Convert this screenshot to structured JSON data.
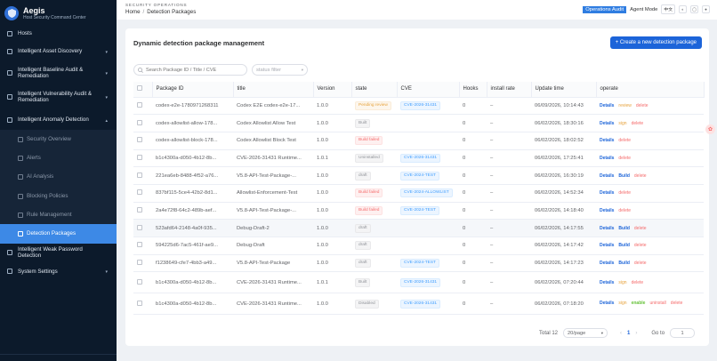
{
  "app": {
    "title": "Aegis",
    "subtitle": "Host Security Command Center"
  },
  "sidebar": {
    "items": [
      {
        "label": "Hosts",
        "icon": "host-icon"
      },
      {
        "label": "Intelligent Asset Discovery",
        "icon": "asset-icon"
      },
      {
        "label": "Intelligent Baseline Audit & Remediation",
        "icon": "baseline-icon"
      },
      {
        "label": "Intelligent Vulnerability Audit & Remediation",
        "icon": "vuln-icon"
      },
      {
        "label": "Intelligent Anomaly Detection",
        "icon": "anomaly-icon"
      }
    ],
    "subitems": [
      {
        "label": "Security Overview"
      },
      {
        "label": "Alerts"
      },
      {
        "label": "AI Analysis"
      },
      {
        "label": "Blocking Policies"
      },
      {
        "label": "Rule Management"
      },
      {
        "label": "Detection Packages"
      }
    ],
    "bottom_items": [
      {
        "label": "Intelligent Weak Password Detection"
      },
      {
        "label": "System Settings"
      }
    ]
  },
  "header": {
    "section": "SECURITY OPERATIONS",
    "crumb_home": "Home",
    "crumb_sep": "/",
    "crumb_current": "Detection Packages",
    "audit_tag": "Operations Audit",
    "mode": "Agent Mode",
    "lang": "中文"
  },
  "main": {
    "title": "Dynamic detection package management",
    "create_label": "+ Create a new detection package",
    "search_placeholder": "Search Package ID / Title / CVE",
    "status_placeholder": "status filter"
  },
  "table": {
    "columns": [
      "Package ID",
      "title",
      "Version",
      "state",
      "CVE",
      "Hooks",
      "install rate",
      "Update time",
      "operate"
    ],
    "rows": [
      {
        "id": "codex-e2e-1780971268311",
        "title": "Codex E2E codex-e2e-17...",
        "version": "1.0.0",
        "state": "Pending review",
        "state_kind": "pend",
        "cve": "CVE-2026-31431",
        "hooks": "0",
        "rate": "–",
        "time": "06/09/2026, 10:14:43",
        "ops": [
          "Details",
          "review",
          "delete"
        ]
      },
      {
        "id": "codex-allowlist-allow-178...",
        "title": "Codex Allowlist Allow Test",
        "version": "1.0.0",
        "state": "Built",
        "state_kind": "built",
        "cve": "",
        "hooks": "0",
        "rate": "–",
        "time": "06/02/2026, 18:30:16",
        "ops": [
          "Details",
          "sign",
          "delete"
        ]
      },
      {
        "id": "codex-allowlist-block-178...",
        "title": "Codex Allowlist Block Test",
        "version": "1.0.0",
        "state": "Build failed",
        "state_kind": "fail",
        "cve": "",
        "hooks": "0",
        "rate": "–",
        "time": "06/02/2026, 18:02:52",
        "ops": [
          "Details",
          "delete"
        ]
      },
      {
        "id": "b1c4300a-d050-4b12-8b...",
        "title": "CVE-2026-31431 Runtime...",
        "version": "1.0.1",
        "state": "Uninstalled",
        "state_kind": "built",
        "cve": "CVE-2026-31431",
        "hooks": "0",
        "rate": "–",
        "time": "06/02/2026, 17:25:41",
        "ops": [
          "Details",
          "delete"
        ]
      },
      {
        "id": "221ea6eb-8488-4f52-a76...",
        "title": "V5.8-API-Test-Package-...",
        "version": "1.0.0",
        "state": "draft",
        "state_kind": "built",
        "cve": "CVE-2024-TEST",
        "hooks": "0",
        "rate": "–",
        "time": "06/02/2026, 16:30:19",
        "ops": [
          "Details",
          "Build",
          "delete"
        ]
      },
      {
        "id": "837bf115-5ce4-42b2-8d1...",
        "title": "Allowlist-Enforcement-Test",
        "version": "1.0.0",
        "state": "Build failed",
        "state_kind": "fail",
        "cve": "CVE-2024-ALLOWLIST",
        "hooks": "0",
        "rate": "–",
        "time": "06/02/2026, 14:52:34",
        "ops": [
          "Details",
          "delete"
        ]
      },
      {
        "id": "2a4e72f8-64c2-489b-aef...",
        "title": "V5.8-API-Test-Package-...",
        "version": "1.0.0",
        "state": "Build failed",
        "state_kind": "fail",
        "cve": "CVE-2024-TEST",
        "hooks": "0",
        "rate": "–",
        "time": "06/02/2026, 14:18:40",
        "ops": [
          "Details",
          "delete"
        ]
      },
      {
        "id": "523afd64-2148-4a0f-935...",
        "title": "Debug-Draft-2",
        "version": "1.0.0",
        "state": "draft",
        "state_kind": "built",
        "cve": "",
        "hooks": "0",
        "rate": "–",
        "time": "06/02/2026, 14:17:55",
        "ops": [
          "Details",
          "Build",
          "delete"
        ]
      },
      {
        "id": "594225d6-7ac5-461f-ae9...",
        "title": "Debug-Draft",
        "version": "1.0.0",
        "state": "draft",
        "state_kind": "built",
        "cve": "",
        "hooks": "0",
        "rate": "–",
        "time": "06/02/2026, 14:17:42",
        "ops": [
          "Details",
          "Build",
          "delete"
        ]
      },
      {
        "id": "f1238649-cfe7-4bb3-a49...",
        "title": "V5.8-API-Test-Package",
        "version": "1.0.0",
        "state": "draft",
        "state_kind": "built",
        "cve": "CVE-2024-TEST",
        "hooks": "0",
        "rate": "–",
        "time": "06/02/2026, 14:17:23",
        "ops": [
          "Details",
          "Build",
          "delete"
        ]
      },
      {
        "id": "b1c4300a-d050-4b12-8b...",
        "title": "CVE-2026-31431 Runtime...",
        "version": "1.0.1",
        "state": "Built",
        "state_kind": "built",
        "cve": "CVE-2026-31431",
        "hooks": "0",
        "rate": "–",
        "time": "06/02/2026, 07:20:44",
        "ops": [
          "Details",
          "sign",
          "delete"
        ]
      },
      {
        "id": "b1c4300a-d050-4b12-8b...",
        "title": "CVE-2026-31431 Runtime...",
        "version": "1.0.0",
        "state": "Disabled",
        "state_kind": "built",
        "cve": "CVE-2026-31431",
        "hooks": "0",
        "rate": "–",
        "time": "06/02/2026, 07:18:20",
        "ops": [
          "Details",
          "sign",
          "enable",
          "uninstall",
          "delete"
        ]
      }
    ]
  },
  "pagination": {
    "total": "Total 12",
    "page_size": "20/page",
    "prev": "‹",
    "page": "1",
    "next": "›",
    "goto_label": "Go to",
    "goto_value": "1"
  }
}
